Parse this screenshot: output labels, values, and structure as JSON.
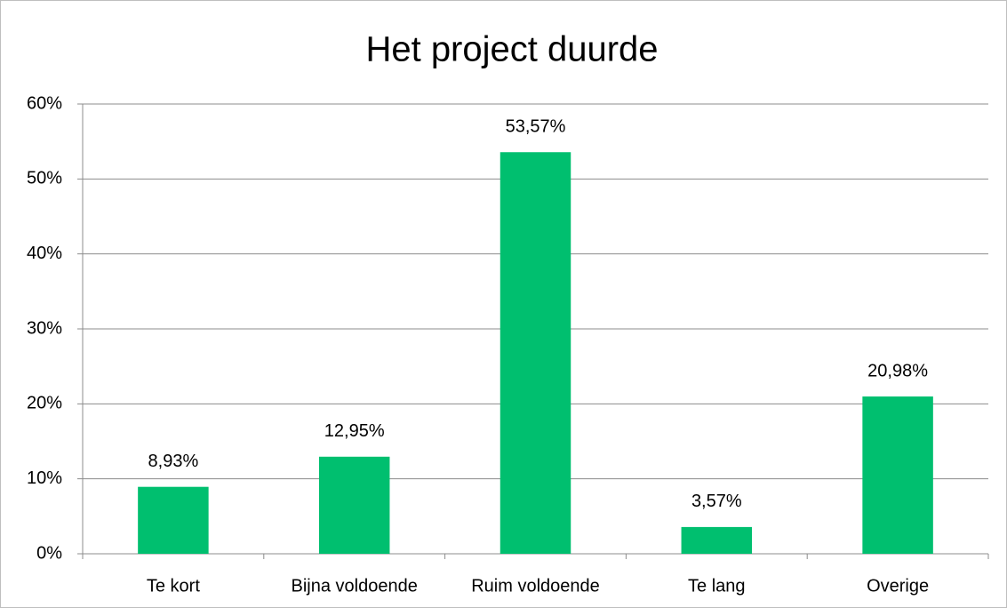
{
  "chart_data": {
    "type": "bar",
    "title": "Het project duurde",
    "categories": [
      "Te kort",
      "Bijna voldoende",
      "Ruim voldoende",
      "Te lang",
      "Overige"
    ],
    "values": [
      8.93,
      12.95,
      53.57,
      3.57,
      20.98
    ],
    "value_labels": [
      "8,93%",
      "12,95%",
      "53,57%",
      "3,57%",
      "20,98%"
    ],
    "color": "#00bf6f",
    "ylim": [
      0,
      60
    ],
    "yticks": [
      {
        "value": 0,
        "label": "0%"
      },
      {
        "value": 10,
        "label": "10%"
      },
      {
        "value": 20,
        "label": "20%"
      },
      {
        "value": 30,
        "label": "30%"
      },
      {
        "value": 40,
        "label": "40%"
      },
      {
        "value": 50,
        "label": "50%"
      },
      {
        "value": 60,
        "label": "60%"
      }
    ],
    "grid": true
  }
}
